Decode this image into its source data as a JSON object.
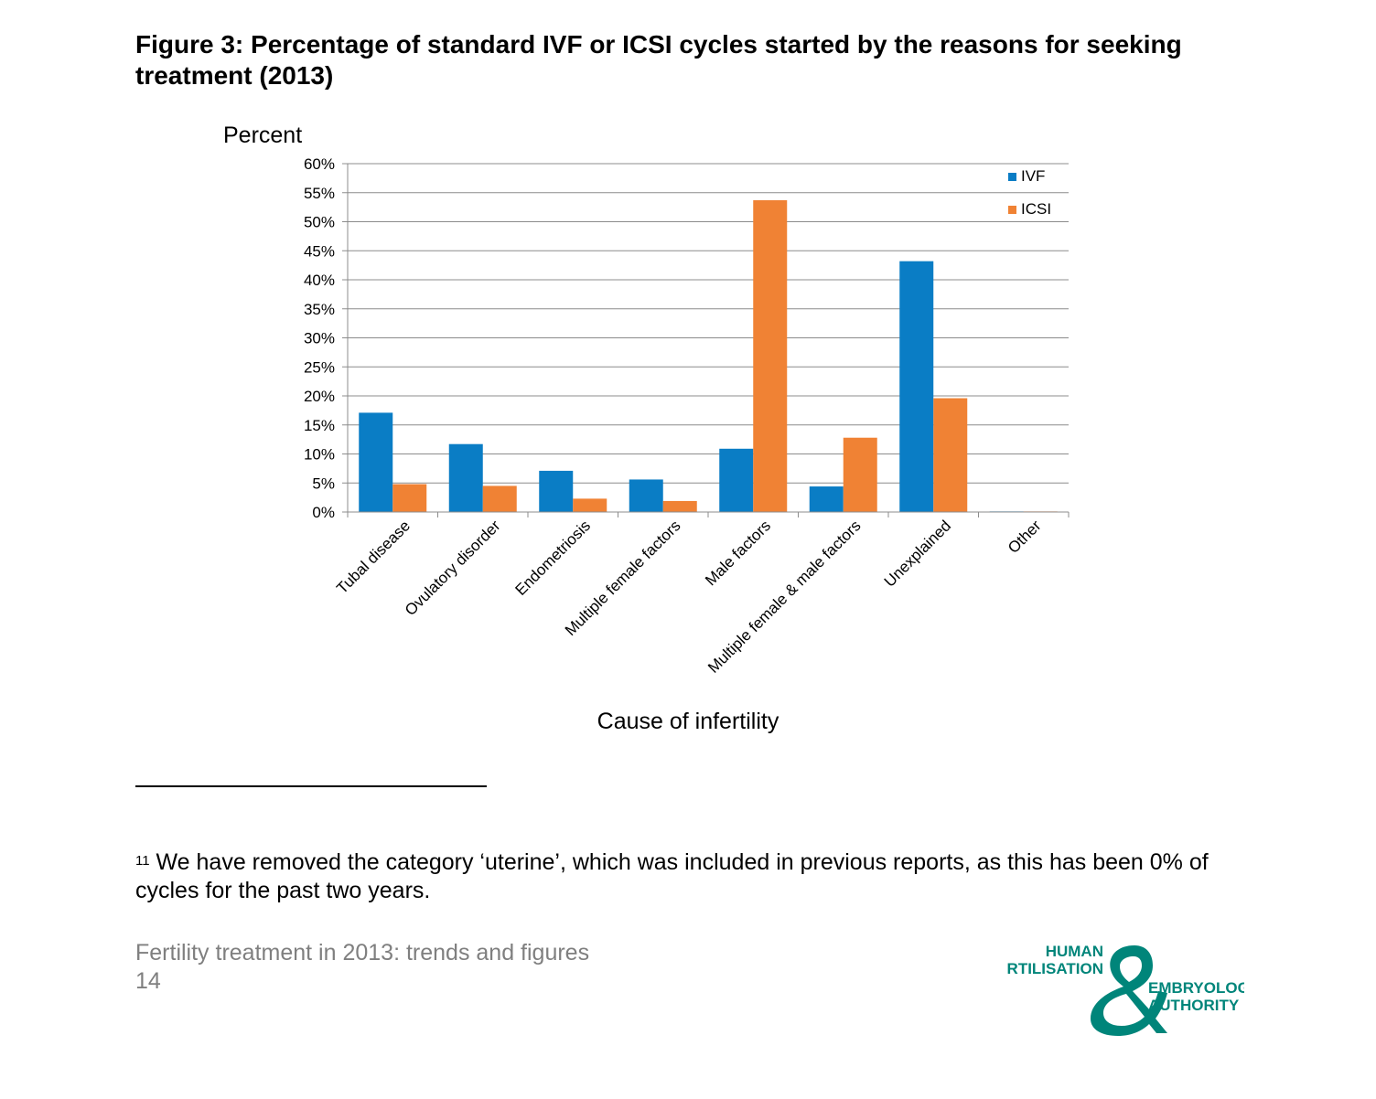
{
  "figure": {
    "title": "Figure 3: Percentage of standard IVF or ICSI cycles started by the reasons for seeking treatment (2013)"
  },
  "chart_data": {
    "type": "bar",
    "ylabel": "Percent",
    "xlabel": "Cause of infertility",
    "ylim": [
      0,
      60
    ],
    "yticks": [
      "0%",
      "5%",
      "10%",
      "15%",
      "20%",
      "25%",
      "30%",
      "35%",
      "40%",
      "45%",
      "50%",
      "55%",
      "60%"
    ],
    "grid": true,
    "legend_position": "top-right",
    "categories": [
      "Tubal disease",
      "Ovulatory disorder",
      "Endometriosis",
      "Multiple female factors",
      "Male factors",
      "Multiple female & male factors",
      "Unexplained",
      "Other"
    ],
    "series": [
      {
        "name": "IVF",
        "color": "#0a7dc5",
        "values": [
          17.1,
          11.7,
          7.1,
          5.6,
          10.9,
          4.4,
          43.2,
          0.1
        ]
      },
      {
        "name": "ICSI",
        "color": "#f08234",
        "values": [
          4.8,
          4.5,
          2.3,
          1.9,
          53.7,
          12.8,
          19.6,
          0.1
        ]
      }
    ]
  },
  "footnote": {
    "marker": "11",
    "text": "We have removed the category ‘uterine’, which was included in previous reports, as this has been 0% of cycles for the past two years."
  },
  "footer": {
    "doc_title": "Fertility treatment in 2013: trends and figures",
    "page_number": "14"
  },
  "logo": {
    "line1": "HUMAN",
    "line2": "FERTILISATION",
    "line3": "EMBRYOLOGY",
    "line4": "AUTHORITY",
    "color": "#00857a"
  }
}
